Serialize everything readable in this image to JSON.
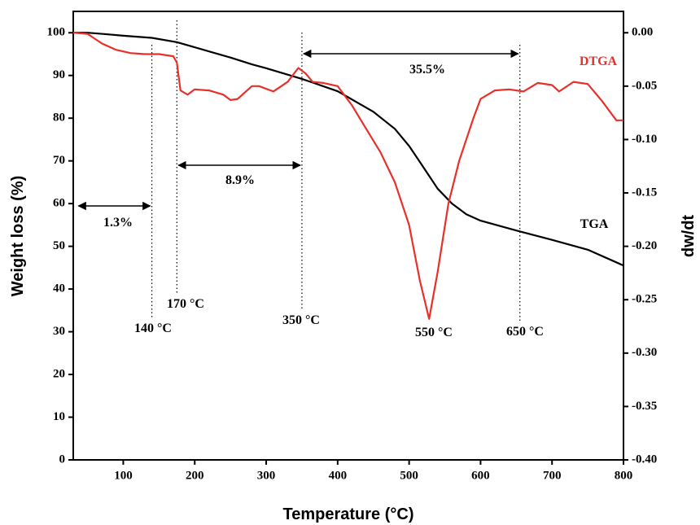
{
  "chart_data": {
    "type": "line",
    "x_label": "Temperature (°C)",
    "y_label": "Weight loss (%)",
    "y2_label": "dw/dt",
    "xlim": [
      30,
      800
    ],
    "xticks": [
      100,
      200,
      300,
      400,
      500,
      600,
      700,
      800
    ],
    "ylim": [
      0,
      105
    ],
    "yticks": [
      0,
      10,
      20,
      30,
      40,
      50,
      60,
      70,
      80,
      90,
      100
    ],
    "y2lim": [
      -0.4,
      0.02
    ],
    "y2ticks": [
      {
        "value": 0,
        "label": "0.00"
      },
      {
        "value": -0.05,
        "label": "-0.05"
      },
      {
        "value": -0.1,
        "label": "-0.10"
      },
      {
        "value": -0.15,
        "label": "-0.15"
      },
      {
        "value": -0.2,
        "label": "-0.20"
      },
      {
        "value": -0.25,
        "label": "-0.25"
      },
      {
        "value": -0.3,
        "label": "-0.30"
      },
      {
        "value": -0.35,
        "label": "-0.35"
      },
      {
        "value": -0.4,
        "label": "-0.40"
      }
    ],
    "series": [
      {
        "name": "TGA",
        "color": "#000000",
        "x": [
          30,
          50,
          80,
          100,
          140,
          175,
          200,
          250,
          280,
          300,
          350,
          400,
          450,
          480,
          500,
          520,
          540,
          560,
          580,
          600,
          650,
          700,
          750,
          800
        ],
        "values": [
          100,
          100,
          99.6,
          99.3,
          98.8,
          97.8,
          96.6,
          94.2,
          92.6,
          91.7,
          89.2,
          86.3,
          81.5,
          77.5,
          73.5,
          68.5,
          63.5,
          60,
          57.5,
          56,
          53.7,
          51.5,
          49.2,
          45.5
        ]
      },
      {
        "name": "DTGA",
        "color": "#e8302a",
        "axis": "y2",
        "x": [
          30,
          50,
          70,
          90,
          110,
          130,
          150,
          170,
          175,
          180,
          190,
          200,
          220,
          240,
          250,
          260,
          280,
          290,
          310,
          330,
          345,
          355,
          365,
          380,
          400,
          420,
          440,
          460,
          480,
          500,
          515,
          528,
          540,
          555,
          570,
          590,
          600,
          620,
          640,
          660,
          680,
          700,
          710,
          730,
          750,
          770,
          790,
          800
        ],
        "values": [
          0,
          -0.001,
          -0.01,
          -0.016,
          -0.019,
          -0.02,
          -0.02,
          -0.022,
          -0.028,
          -0.054,
          -0.058,
          -0.053,
          -0.054,
          -0.058,
          -0.063,
          -0.062,
          -0.05,
          -0.05,
          -0.055,
          -0.046,
          -0.033,
          -0.038,
          -0.046,
          -0.047,
          -0.05,
          -0.068,
          -0.09,
          -0.112,
          -0.14,
          -0.18,
          -0.232,
          -0.268,
          -0.224,
          -0.16,
          -0.12,
          -0.08,
          -0.062,
          -0.054,
          -0.053,
          -0.055,
          -0.047,
          -0.049,
          -0.055,
          -0.046,
          -0.048,
          -0.064,
          -0.082,
          -0.082
        ]
      }
    ],
    "annotations": [
      "140 °C",
      "170 °C",
      "350 °C",
      "550 °C",
      "650 °C",
      "1.3%",
      "8.9%",
      "35.5%"
    ]
  }
}
